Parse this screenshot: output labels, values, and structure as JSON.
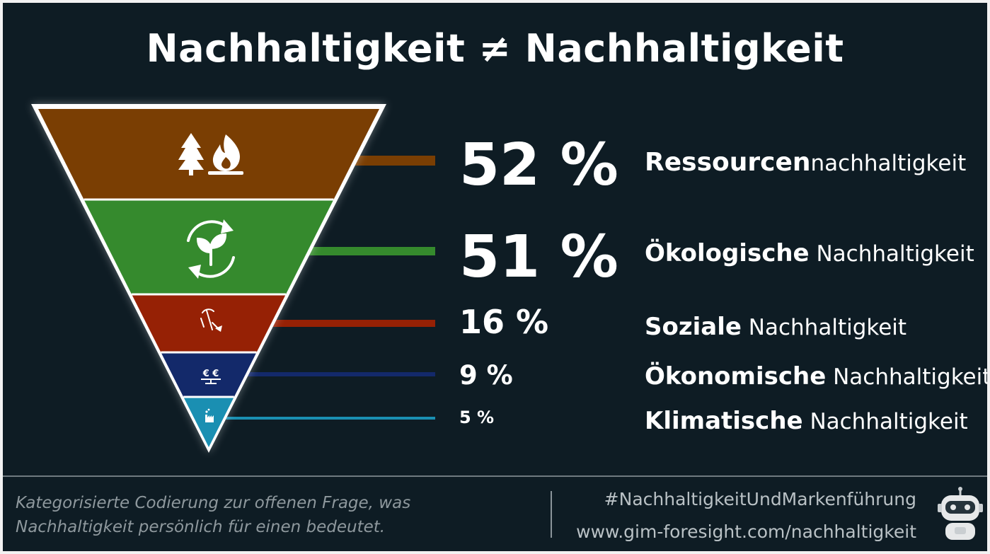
{
  "header": {
    "title": "Nachhaltigkeit ≠ Nachhaltigkeit"
  },
  "chart_data": {
    "type": "bar",
    "title": "Nachhaltigkeit ≠ Nachhaltigkeit",
    "categories": [
      {
        "bold": "Ressourcen",
        "rest": "nachhaltigkeit",
        "value_label": "52 %"
      },
      {
        "bold": "Ökologische",
        "rest": " Nachhaltigkeit",
        "value_label": "51 %"
      },
      {
        "bold": "Soziale",
        "rest": " Nachhaltigkeit",
        "value_label": "16 %"
      },
      {
        "bold": "Ökonomische",
        "rest": " Nachhaltigkeit",
        "value_label": "9 %"
      },
      {
        "bold": "Klimatische",
        "rest": " Nachhaltigkeit",
        "value_label": "5 %"
      }
    ],
    "values": [
      52,
      51,
      16,
      9,
      5
    ],
    "unit": "%",
    "colors": [
      "#7a3e03",
      "#358a2d",
      "#962105",
      "#13296a",
      "#1a8fb2"
    ],
    "icons": [
      "tree-fire-icon",
      "recycle-plant-icon",
      "mining-icon",
      "euro-scale-icon",
      "factory-icon"
    ],
    "euro_icon_text": "€ €"
  },
  "footer": {
    "note_line1": "Kategorisierte Codierung zur offenen Frage, was",
    "note_line2": "Nachhaltigkeit persönlich für einen bedeutet.",
    "hashtag": "#NachhaltigkeitUndMarkenführung",
    "url": "www.gim-foresight.com/nachhaltigkeit"
  },
  "colors": {
    "background": "#0e1c24",
    "frame": "#f2f2f2",
    "text": "#ffffff",
    "muted": "#8e989d"
  }
}
